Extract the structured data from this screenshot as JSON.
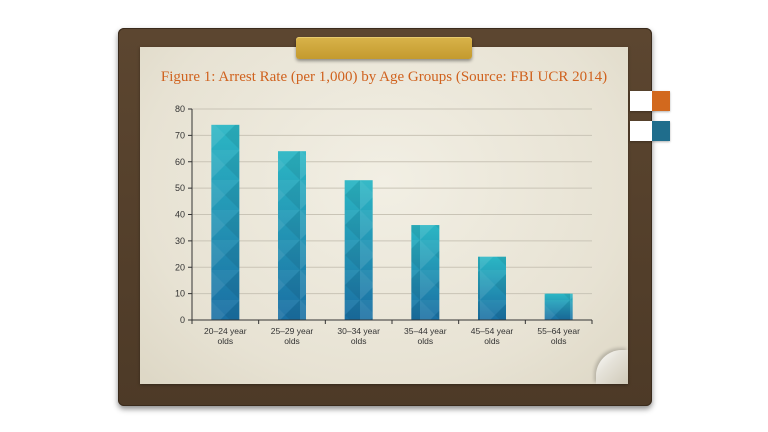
{
  "chart_data": {
    "type": "bar",
    "title": "Figure 1: Arrest Rate (per 1,000) by Age Groups (Source: FBI UCR 2014)",
    "categories": [
      [
        "20–24 year",
        "olds"
      ],
      [
        "25–29 year",
        "olds"
      ],
      [
        "30–34 year",
        "olds"
      ],
      [
        "35–44 year",
        "olds"
      ],
      [
        "45–54 year",
        "olds"
      ],
      [
        "55–64 year",
        "olds"
      ]
    ],
    "values": [
      74,
      64,
      53,
      36,
      24,
      10
    ],
    "ylim": [
      0,
      80
    ],
    "yticks": [
      0,
      10,
      20,
      30,
      40,
      50,
      60,
      70,
      80
    ],
    "grid": true,
    "bar_color_top": "#2bb6c4",
    "bar_color_bottom": "#1a6fa3"
  },
  "colors": {
    "title": "#d0621e",
    "tab_orange": "#d2691e",
    "tab_teal": "#1f6d8c",
    "clip": "#c9a133",
    "board": "#54402b"
  }
}
